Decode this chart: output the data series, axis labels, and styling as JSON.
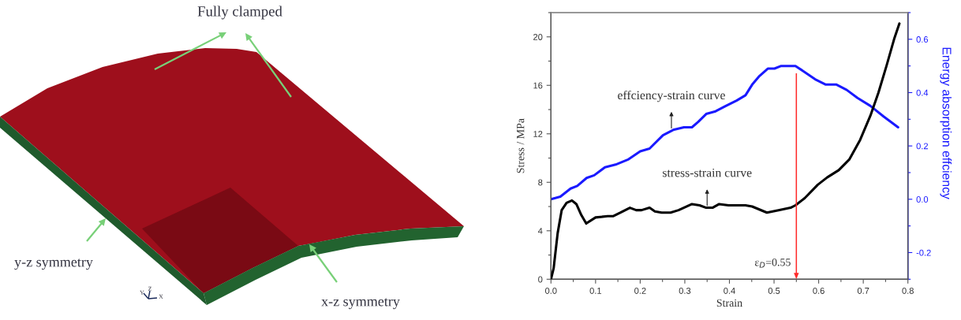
{
  "chart_data": [
    {
      "type": "other",
      "annotations": [
        "Fully clamped",
        "y-z symmetry",
        "x-z symmetry",
        "Y",
        "Z",
        "X"
      ]
    },
    {
      "type": "line",
      "xlabel": "Strain",
      "ylabel": "Stress / MPa",
      "y2label": "Energy absorption effciency",
      "xlim": [
        0,
        0.8
      ],
      "xticks": [
        {
          "value": 0,
          "label": "0.0"
        },
        0.1,
        0.2,
        0.3,
        0.4,
        0.5,
        0.6,
        0.7,
        0.8
      ],
      "ylim": [
        0,
        22
      ],
      "yticks": [
        0,
        4,
        8,
        12,
        16,
        20
      ],
      "y2lim": [
        -0.3,
        0.7
      ],
      "y2ticks": [
        -0.2,
        {
          "value": 0,
          "label": "0.0"
        },
        0.2,
        0.4,
        0.6
      ],
      "series": [
        {
          "color": "#000000",
          "x": [
            0,
            0.006,
            0.015,
            0.024,
            0.035,
            0.047,
            0.057,
            0.068,
            0.079,
            0.1,
            0.127,
            0.139,
            0.156,
            0.177,
            0.191,
            0.203,
            0.221,
            0.233,
            0.248,
            0.268,
            0.286,
            0.316,
            0.333,
            0.348,
            0.362,
            0.377,
            0.398,
            0.436,
            0.451,
            0.484,
            0.51,
            0.537,
            0.548,
            0.569,
            0.598,
            0.619,
            0.645,
            0.669,
            0.693,
            0.716,
            0.734,
            0.752,
            0.769,
            0.781
          ],
          "values": [
            0,
            0.9,
            3.8,
            5.7,
            6.3,
            6.5,
            6.2,
            5.3,
            4.6,
            5.1,
            5.2,
            5.2,
            5.5,
            5.9,
            5.7,
            5.7,
            5.9,
            5.6,
            5.5,
            5.5,
            5.7,
            6.2,
            6.1,
            5.9,
            5.9,
            6.2,
            6.1,
            6.1,
            6.0,
            5.5,
            5.7,
            5.9,
            6.1,
            6.7,
            7.8,
            8.4,
            9.0,
            9.9,
            11.5,
            13.5,
            15.4,
            17.6,
            19.8,
            21.1
          ]
        },
        {
          "color": "#1a1aff",
          "axis": "y2",
          "x": [
            0,
            0.021,
            0.044,
            0.059,
            0.08,
            0.097,
            0.121,
            0.145,
            0.174,
            0.2,
            0.221,
            0.251,
            0.274,
            0.298,
            0.316,
            0.33,
            0.348,
            0.369,
            0.392,
            0.416,
            0.436,
            0.451,
            0.466,
            0.486,
            0.501,
            0.516,
            0.537,
            0.548,
            0.566,
            0.592,
            0.616,
            0.64,
            0.663,
            0.687,
            0.716,
            0.746,
            0.778
          ],
          "values": [
            0,
            0.01,
            0.04,
            0.05,
            0.08,
            0.09,
            0.12,
            0.13,
            0.15,
            0.18,
            0.19,
            0.24,
            0.26,
            0.27,
            0.27,
            0.29,
            0.32,
            0.33,
            0.35,
            0.37,
            0.39,
            0.43,
            0.46,
            0.49,
            0.49,
            0.5,
            0.5,
            0.5,
            0.48,
            0.45,
            0.43,
            0.43,
            0.41,
            0.38,
            0.35,
            0.31,
            0.27
          ]
        }
      ],
      "ref_lines": [
        {
          "axis": "x",
          "value": 0.55,
          "label": "ε$_{D}$=0.55",
          "color": "#ff2a2a"
        }
      ],
      "annotations": [
        {
          "text": "effciency-strain curve",
          "x": 0.27,
          "y": 12.3
        },
        {
          "text": "stress-strain curve",
          "x": 0.35,
          "y": 5.9
        }
      ]
    }
  ]
}
